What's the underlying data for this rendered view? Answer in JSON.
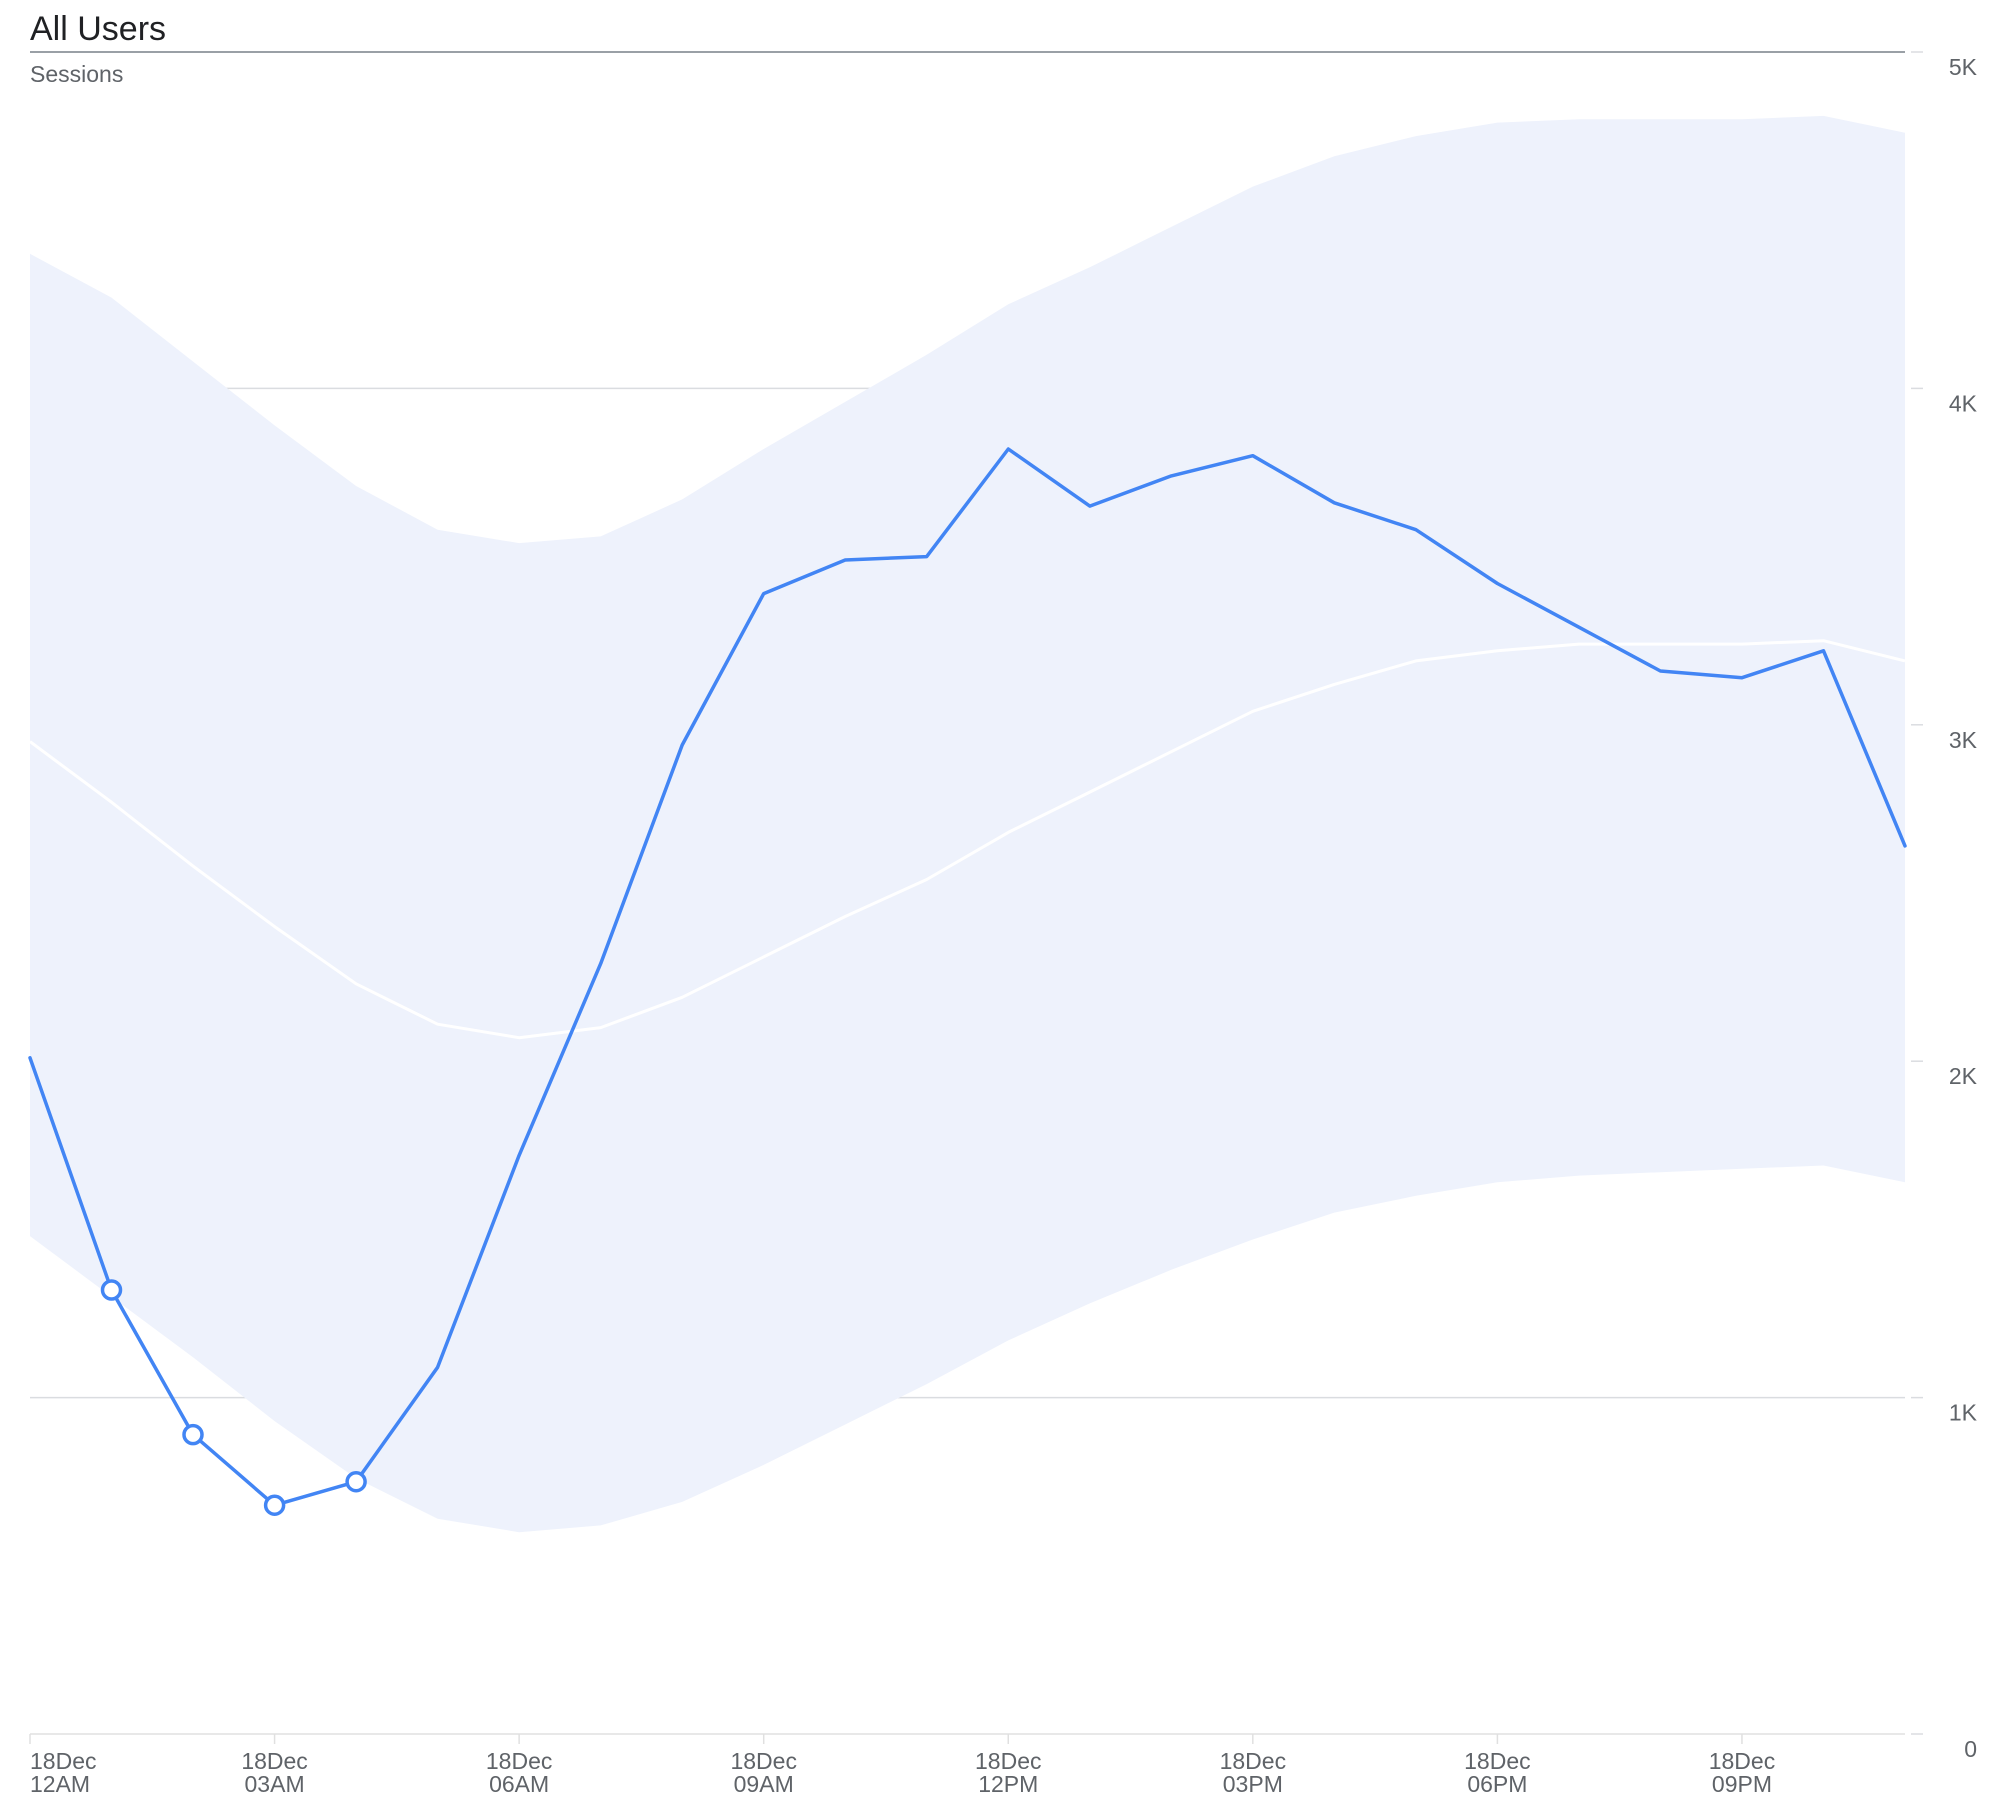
{
  "chart_data": {
    "type": "line",
    "title": "All Users",
    "subtitle": "Sessions",
    "ylim": [
      0,
      5000
    ],
    "y_ticks": [
      {
        "value": 0,
        "label": "0"
      },
      {
        "value": 1000,
        "label": "1K"
      },
      {
        "value": 2000,
        "label": "2K"
      },
      {
        "value": 3000,
        "label": "3K"
      },
      {
        "value": 4000,
        "label": "4K"
      },
      {
        "value": 5000,
        "label": "5K"
      }
    ],
    "x_ticks": [
      {
        "hour": 0,
        "line1": "18Dec",
        "line2": "12AM"
      },
      {
        "hour": 3,
        "line1": "18Dec",
        "line2": "03AM"
      },
      {
        "hour": 6,
        "line1": "18Dec",
        "line2": "06AM"
      },
      {
        "hour": 9,
        "line1": "18Dec",
        "line2": "09AM"
      },
      {
        "hour": 12,
        "line1": "18Dec",
        "line2": "12PM"
      },
      {
        "hour": 15,
        "line1": "18Dec",
        "line2": "03PM"
      },
      {
        "hour": 18,
        "line1": "18Dec",
        "line2": "06PM"
      },
      {
        "hour": 21,
        "line1": "18Dec",
        "line2": "09PM"
      }
    ],
    "x": [
      0,
      1,
      2,
      3,
      4,
      5,
      6,
      7,
      8,
      9,
      10,
      11,
      12,
      13,
      14,
      15,
      16,
      17,
      18,
      19,
      20,
      21,
      22,
      23
    ],
    "grid": true,
    "colors": {
      "line": "#4285f4",
      "band": "#eef2fc",
      "expected": "#ffffff",
      "grid": "#dadce0",
      "axis": "#9aa0a6"
    },
    "series": [
      {
        "values": [
          2010,
          1320,
          890,
          680,
          750,
          1090,
          1720,
          2290,
          2940,
          3390,
          3490,
          3500,
          3820,
          3650,
          3740,
          3800,
          3660,
          3580,
          3420,
          3290,
          3160,
          3140,
          3220,
          2640
        ],
        "anomaly_points": [
          1,
          2,
          3,
          4
        ]
      }
    ],
    "expected": [
      2950,
      2770,
      2580,
      2400,
      2230,
      2110,
      2070,
      2100,
      2190,
      2310,
      2430,
      2540,
      2680,
      2800,
      2920,
      3040,
      3120,
      3190,
      3220,
      3240,
      3240,
      3240,
      3250,
      3190
    ],
    "band_upper": [
      4400,
      4270,
      4080,
      3890,
      3710,
      3580,
      3540,
      3560,
      3670,
      3820,
      3960,
      4100,
      4250,
      4360,
      4480,
      4600,
      4690,
      4750,
      4790,
      4800,
      4800,
      4800,
      4810,
      4760
    ],
    "band_lower": [
      1480,
      1300,
      1120,
      930,
      760,
      640,
      600,
      620,
      690,
      800,
      920,
      1040,
      1170,
      1280,
      1380,
      1470,
      1550,
      1600,
      1640,
      1660,
      1670,
      1680,
      1690,
      1640
    ]
  }
}
